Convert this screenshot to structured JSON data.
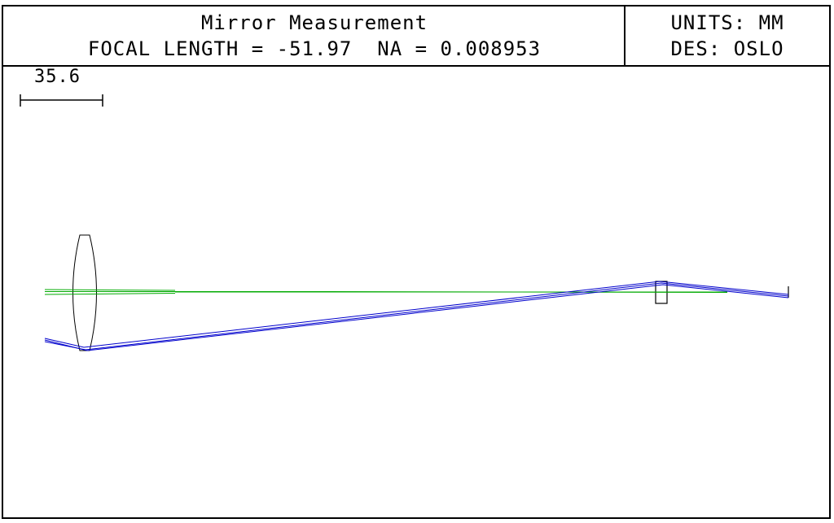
{
  "header": {
    "title": "Mirror Measurement",
    "subtitle": "FOCAL LENGTH = -51.97  NA = 0.008953",
    "units": "UNITS: MM",
    "designer": "DES: OSLO"
  },
  "scale_bar": {
    "label": "35.6"
  },
  "colors": {
    "axial_ray": "#00aa00",
    "off_axis_ray": "#0000cc",
    "element_outline": "#000000"
  }
}
